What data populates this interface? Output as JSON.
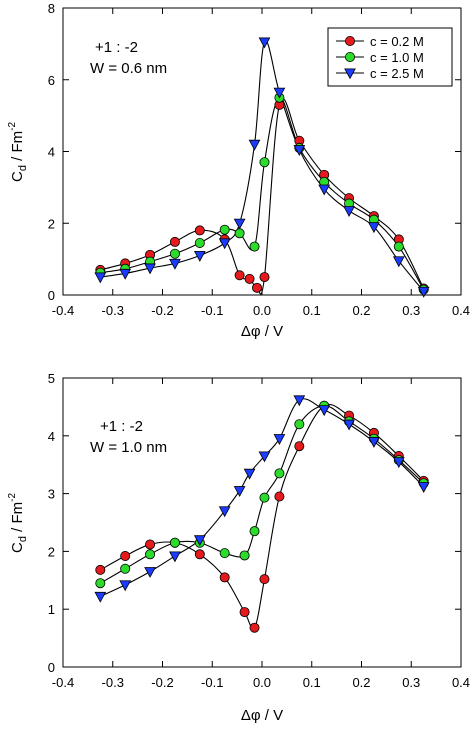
{
  "chart_data": [
    {
      "type": "scatter",
      "mode": "lines+markers",
      "xlim": [
        -0.4,
        0.4
      ],
      "ylim": [
        0,
        8
      ],
      "xticks": [
        -0.4,
        -0.3,
        -0.2,
        -0.1,
        0.0,
        0.1,
        0.2,
        0.3,
        0.4
      ],
      "yticks": [
        0,
        2,
        4,
        6,
        8
      ],
      "xtick_labels": [
        "-0.4",
        "-0.3",
        "-0.2",
        "-0.1",
        "0.0",
        "0.1",
        "0.2",
        "0.3",
        "0.4"
      ],
      "ytick_labels": [
        "0",
        "2",
        "4",
        "6",
        "8"
      ],
      "xlabel": "Δφ / V",
      "ylabel_main": "C",
      "ylabel_sub": "d",
      "ylabel_rest": " / Fm",
      "ylabel_sup": "-2",
      "annotation_line1": "+1 : -2",
      "annotation_line2": "W = 0.6 nm",
      "legend_position": "top-right",
      "grid": false,
      "series": [
        {
          "name": "c = 0.2 M",
          "color": "#e41a1c",
          "marker": "circle",
          "x": [
            -0.325,
            -0.275,
            -0.225,
            -0.175,
            -0.125,
            -0.075,
            -0.045,
            -0.025,
            -0.01,
            0.005,
            0.035,
            0.075,
            0.125,
            0.175,
            0.225,
            0.275,
            0.325
          ],
          "y": [
            0.7,
            0.88,
            1.12,
            1.48,
            1.8,
            1.55,
            0.55,
            0.45,
            0.2,
            0.5,
            5.3,
            4.3,
            3.35,
            2.7,
            2.2,
            1.55,
            0.18
          ]
        },
        {
          "name": "c = 1.0 M",
          "color": "#2bdc2b",
          "marker": "circle",
          "x": [
            -0.325,
            -0.275,
            -0.225,
            -0.175,
            -0.125,
            -0.075,
            -0.045,
            -0.015,
            0.005,
            0.035,
            0.075,
            0.125,
            0.175,
            0.225,
            0.275,
            0.325
          ],
          "y": [
            0.62,
            0.73,
            0.93,
            1.15,
            1.45,
            1.82,
            1.72,
            1.35,
            3.7,
            5.5,
            4.1,
            3.15,
            2.55,
            2.1,
            1.35,
            0.15
          ]
        },
        {
          "name": "c = 2.5 M",
          "color": "#1a3cff",
          "marker": "triangle-down",
          "x": [
            -0.325,
            -0.275,
            -0.225,
            -0.175,
            -0.125,
            -0.075,
            -0.045,
            -0.015,
            0.005,
            0.035,
            0.075,
            0.125,
            0.175,
            0.225,
            0.275,
            0.325
          ],
          "y": [
            0.5,
            0.6,
            0.75,
            0.88,
            1.1,
            1.45,
            2.0,
            4.2,
            7.05,
            5.65,
            4.05,
            2.95,
            2.35,
            1.9,
            0.95,
            0.1
          ]
        }
      ]
    },
    {
      "type": "scatter",
      "mode": "lines+markers",
      "xlim": [
        -0.4,
        0.4
      ],
      "ylim": [
        0,
        5
      ],
      "xticks": [
        -0.4,
        -0.3,
        -0.2,
        -0.1,
        0.0,
        0.1,
        0.2,
        0.3,
        0.4
      ],
      "yticks": [
        0,
        1,
        2,
        3,
        4,
        5
      ],
      "xtick_labels": [
        "-0.4",
        "-0.3",
        "-0.2",
        "-0.1",
        "0.0",
        "0.1",
        "0.2",
        "0.3",
        "0.4"
      ],
      "ytick_labels": [
        "0",
        "1",
        "2",
        "3",
        "4",
        "5"
      ],
      "xlabel": "Δφ / V",
      "ylabel_main": "C",
      "ylabel_sub": "d",
      "ylabel_rest": " / Fm",
      "ylabel_sup": "-2",
      "annotation_line1": "+1 : -2",
      "annotation_line2": "W = 1.0 nm",
      "grid": false,
      "series": [
        {
          "name": "c = 0.2 M",
          "color": "#e41a1c",
          "marker": "circle",
          "x": [
            -0.325,
            -0.275,
            -0.225,
            -0.175,
            -0.125,
            -0.075,
            -0.035,
            -0.015,
            0.005,
            0.035,
            0.075,
            0.125,
            0.175,
            0.225,
            0.275,
            0.325
          ],
          "y": [
            1.68,
            1.92,
            2.12,
            2.15,
            1.95,
            1.55,
            0.95,
            0.68,
            1.52,
            2.95,
            3.82,
            4.52,
            4.35,
            4.05,
            3.65,
            3.22
          ]
        },
        {
          "name": "c = 1.0 M",
          "color": "#2bdc2b",
          "marker": "circle",
          "x": [
            -0.325,
            -0.275,
            -0.225,
            -0.175,
            -0.125,
            -0.075,
            -0.035,
            -0.015,
            0.005,
            0.035,
            0.075,
            0.125,
            0.175,
            0.225,
            0.275,
            0.325
          ],
          "y": [
            1.45,
            1.7,
            1.95,
            2.15,
            2.15,
            1.97,
            1.93,
            2.35,
            2.93,
            3.35,
            4.2,
            4.52,
            4.25,
            3.95,
            3.58,
            3.18
          ]
        },
        {
          "name": "c = 2.5 M",
          "color": "#1a3cff",
          "marker": "triangle-down",
          "x": [
            -0.325,
            -0.275,
            -0.225,
            -0.175,
            -0.125,
            -0.075,
            -0.045,
            -0.025,
            0.005,
            0.035,
            0.075,
            0.125,
            0.175,
            0.225,
            0.275,
            0.325
          ],
          "y": [
            1.22,
            1.42,
            1.65,
            1.92,
            2.2,
            2.7,
            3.05,
            3.35,
            3.65,
            3.95,
            4.62,
            4.45,
            4.2,
            3.9,
            3.55,
            3.12
          ]
        }
      ]
    }
  ]
}
